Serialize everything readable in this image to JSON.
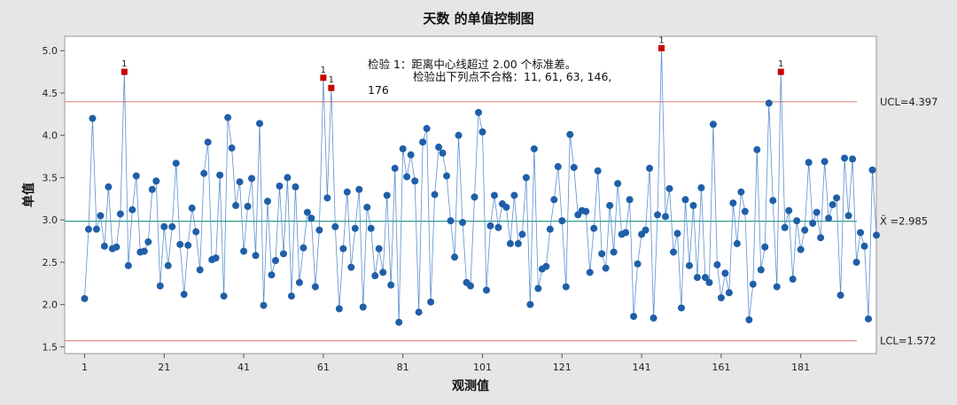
{
  "chart_data": {
    "type": "line",
    "title": "天数 的单值控制图",
    "xlabel": "观测值",
    "ylabel": "单值",
    "x_ticks": [
      1,
      21,
      41,
      61,
      81,
      101,
      121,
      141,
      161,
      181
    ],
    "y_ticks": [
      1.5,
      2.0,
      2.5,
      3.0,
      3.5,
      4.0,
      4.5,
      5.0
    ],
    "y_tick_labels": [
      "1.5",
      "2.0",
      "2.5",
      "3.0",
      "3.5",
      "4.0",
      "4.5",
      "5.0"
    ],
    "xlim": [
      -4,
      200
    ],
    "ylim": [
      1.42,
      5.17
    ],
    "colors": {
      "points": "#1f5fa8",
      "line": "#5b8fd0",
      "limits": "#e08a80",
      "center": "#2e9c8f",
      "flagged": "#cc0000",
      "background": "#e6e6e6",
      "plot": "#ffffff"
    },
    "ucl": {
      "value": 4.397,
      "label": "UCL=4.397"
    },
    "center": {
      "value": 2.985,
      "label": "X̄ =2.985"
    },
    "lcl": {
      "value": 1.572,
      "label": "LCL=1.572"
    },
    "flagged_points": [
      11,
      61,
      63,
      146,
      176
    ],
    "flag_label": "1",
    "test_annotation": {
      "line1": "检验 1：距离中心线超过 2.00 个标准差。",
      "line2": "检验出下列点不合格：11, 61, 63, 146,",
      "line3": "176"
    },
    "values": [
      2.07,
      2.89,
      4.2,
      2.89,
      3.05,
      2.69,
      3.39,
      2.66,
      2.68,
      3.07,
      4.75,
      2.46,
      3.12,
      3.52,
      2.62,
      2.63,
      2.74,
      3.36,
      3.46,
      2.22,
      2.92,
      2.46,
      2.92,
      3.67,
      2.71,
      2.12,
      2.7,
      3.14,
      2.86,
      2.41,
      3.55,
      3.92,
      2.53,
      2.55,
      3.53,
      2.1,
      4.21,
      3.85,
      3.17,
      3.45,
      2.63,
      3.16,
      3.49,
      2.58,
      4.14,
      1.99,
      3.22,
      2.35,
      2.52,
      3.4,
      2.6,
      3.5,
      2.1,
      3.39,
      2.26,
      2.67,
      3.09,
      3.02,
      2.21,
      2.88,
      4.68,
      3.26,
      4.56,
      2.92,
      1.95,
      2.66,
      3.33,
      2.44,
      2.9,
      3.36,
      1.97,
      3.15,
      2.9,
      2.34,
      2.66,
      2.38,
      3.29,
      2.23,
      3.61,
      1.79,
      3.84,
      3.51,
      3.77,
      3.46,
      1.91,
      3.92,
      4.08,
      2.03,
      3.3,
      3.86,
      3.79,
      3.52,
      2.99,
      2.56,
      4.0,
      2.97,
      2.26,
      2.22,
      3.27,
      4.27,
      4.04,
      2.17,
      2.93,
      3.29,
      2.91,
      3.19,
      3.15,
      2.72,
      3.29,
      2.72,
      2.83,
      3.5,
      2.0,
      3.84,
      2.19,
      2.42,
      2.45,
      2.89,
      3.24,
      3.63,
      2.99,
      2.21,
      4.01,
      3.62,
      3.06,
      3.11,
      3.1,
      2.38,
      2.9,
      3.58,
      2.6,
      2.43,
      3.17,
      2.62,
      3.43,
      2.83,
      2.85,
      3.24,
      1.86,
      2.48,
      2.83,
      2.88,
      3.61,
      1.84,
      3.06,
      5.03,
      3.04,
      3.37,
      2.62,
      2.84,
      1.96,
      3.24,
      2.46,
      3.17,
      2.32,
      3.38,
      2.32,
      2.26,
      4.13,
      2.47,
      2.08,
      2.37,
      2.14,
      3.2,
      2.72,
      3.33,
      3.1,
      1.82,
      2.24,
      3.83,
      2.41,
      2.68,
      4.38,
      3.23,
      2.21,
      4.75,
      2.91,
      3.11,
      2.3,
      2.99,
      2.65,
      2.88,
      3.68,
      2.96,
      3.09,
      2.79,
      3.69,
      3.02,
      3.18,
      3.26,
      2.11,
      3.73,
      3.05,
      3.72,
      2.5,
      2.85,
      2.69,
      1.83,
      3.59,
      2.82
    ]
  }
}
